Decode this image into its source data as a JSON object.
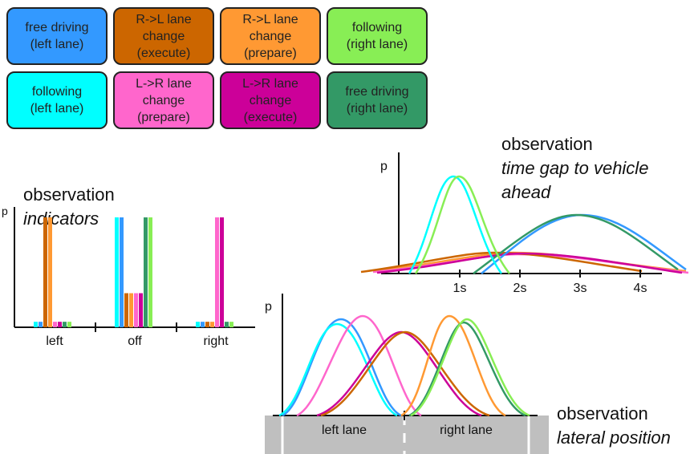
{
  "legend": [
    {
      "label": "free driving\n(left lane)",
      "color": "#3399ff"
    },
    {
      "label": "R->L lane\nchange\n(execute)",
      "color": "#cc6600"
    },
    {
      "label": "R->L lane\nchange\n(prepare)",
      "color": "#ff9933"
    },
    {
      "label": "following\n(right lane)",
      "color": "#88ee55"
    },
    {
      "label": "following\n(left lane)",
      "color": "#00ffff"
    },
    {
      "label": "L->R lane\nchange\n(prepare)",
      "color": "#ff66cc"
    },
    {
      "label": "L->R lane\nchange\n(execute)",
      "color": "#cc0099"
    },
    {
      "label": "free driving\n(right lane)",
      "color": "#339966"
    }
  ],
  "indicators": {
    "title": "observation",
    "subtitle": "indicators",
    "y_axis_label": "p",
    "categories": [
      "left",
      "off",
      "right"
    ],
    "values": {
      "left": [
        0.05,
        0.05,
        1.0,
        1.0,
        0.05,
        0.05,
        0.05,
        0.05
      ],
      "off": [
        1.0,
        1.0,
        0.31,
        0.31,
        0.31,
        0.31,
        1.0,
        1.0
      ],
      "right": [
        0.05,
        0.05,
        0.05,
        0.05,
        1.0,
        1.0,
        0.05,
        0.05
      ]
    }
  },
  "time_gap": {
    "title": "observation",
    "subtitle1": "time gap to vehicle",
    "subtitle2": "ahead",
    "y_axis_label": "p",
    "ticks": [
      "1s",
      "2s",
      "3s",
      "4s"
    ]
  },
  "lateral": {
    "title": "observation",
    "subtitle": "lateral position",
    "y_axis_label": "p",
    "left_lane": "left lane",
    "right_lane": "right lane"
  }
}
